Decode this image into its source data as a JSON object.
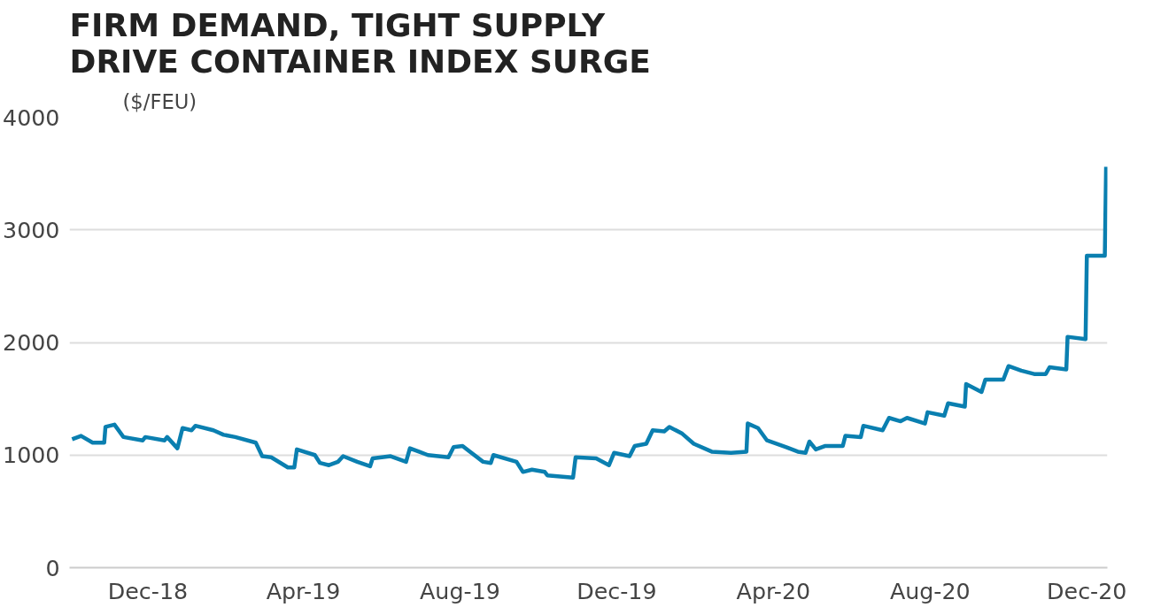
{
  "chart_data": {
    "type": "line",
    "title": "FIRM DEMAND, TIGHT SUPPLY DRIVE CONTAINER INDEX SURGE",
    "ylabel": "($/FEU)",
    "x": [
      "2018-10-03",
      "2018-10-10",
      "2018-10-19",
      "2018-10-28",
      "2018-10-29",
      "2018-11-05",
      "2018-11-12",
      "2018-11-27",
      "2018-11-29",
      "2018-12-14",
      "2018-12-16",
      "2018-12-24",
      "2018-12-28",
      "2019-01-04",
      "2019-01-07",
      "2019-01-21",
      "2019-01-29",
      "2019-02-07",
      "2019-02-23",
      "2019-02-28",
      "2019-03-07",
      "2019-03-20",
      "2019-03-25",
      "2019-03-27",
      "2019-04-10",
      "2019-04-14",
      "2019-04-21",
      "2019-04-28",
      "2019-05-02",
      "2019-05-13",
      "2019-05-23",
      "2019-05-25",
      "2019-06-08",
      "2019-06-20",
      "2019-06-23",
      "2019-06-30",
      "2019-07-07",
      "2019-07-23",
      "2019-07-27",
      "2019-08-03",
      "2019-08-19",
      "2019-08-25",
      "2019-08-27",
      "2019-09-14",
      "2019-09-19",
      "2019-09-26",
      "2019-10-06",
      "2019-10-08",
      "2019-10-28",
      "2019-10-30",
      "2019-11-15",
      "2019-11-25",
      "2019-11-29",
      "2019-12-11",
      "2019-12-15",
      "2019-12-24",
      "2019-12-29",
      "2020-01-07",
      "2020-01-11",
      "2020-01-21",
      "2020-01-30",
      "2020-02-13",
      "2020-02-28",
      "2020-03-11",
      "2020-03-12",
      "2020-03-20",
      "2020-03-27",
      "2020-04-11",
      "2020-04-20",
      "2020-04-26",
      "2020-04-29",
      "2020-05-04",
      "2020-05-11",
      "2020-05-25",
      "2020-05-27",
      "2020-06-08",
      "2020-06-10",
      "2020-06-25",
      "2020-06-30",
      "2020-07-09",
      "2020-07-14",
      "2020-07-28",
      "2020-07-30",
      "2020-08-12",
      "2020-08-15",
      "2020-08-28",
      "2020-08-29",
      "2020-09-10",
      "2020-09-13",
      "2020-09-27",
      "2020-10-01",
      "2020-10-11",
      "2020-10-21",
      "2020-10-30",
      "2020-11-02",
      "2020-11-15",
      "2020-11-16",
      "2020-11-30",
      "2020-12-01",
      "2020-12-15",
      "2020-12-16"
    ],
    "series": [
      {
        "color": "#0a7fb0",
        "values": [
          1140,
          1170,
          1110,
          1110,
          1250,
          1270,
          1160,
          1130,
          1160,
          1130,
          1160,
          1060,
          1240,
          1220,
          1260,
          1220,
          1180,
          1160,
          1110,
          990,
          980,
          890,
          890,
          1050,
          1000,
          930,
          910,
          940,
          990,
          940,
          900,
          970,
          990,
          940,
          1060,
          1030,
          1000,
          980,
          1070,
          1080,
          940,
          930,
          1000,
          940,
          850,
          870,
          850,
          820,
          800,
          980,
          970,
          910,
          1020,
          990,
          1080,
          1100,
          1220,
          1210,
          1250,
          1190,
          1100,
          1030,
          1020,
          1030,
          1280,
          1240,
          1130,
          1070,
          1030,
          1020,
          1120,
          1050,
          1080,
          1080,
          1170,
          1160,
          1260,
          1220,
          1330,
          1300,
          1330,
          1280,
          1380,
          1350,
          1460,
          1430,
          1630,
          1560,
          1670,
          1670,
          1790,
          1750,
          1720,
          1720,
          1780,
          1760,
          2050,
          2030,
          2770,
          2770,
          3560
        ]
      }
    ],
    "xlim": [
      "2018-10-01",
      "2020-12-17"
    ],
    "ylim": [
      0,
      4000
    ],
    "yticks": [
      0,
      1000,
      2000,
      3000,
      4000
    ],
    "xticks": [
      {
        "value": "2018-12-01",
        "label": "Dec-18"
      },
      {
        "value": "2019-04-01",
        "label": "Apr-19"
      },
      {
        "value": "2019-08-01",
        "label": "Aug-19"
      },
      {
        "value": "2019-12-01",
        "label": "Dec-19"
      },
      {
        "value": "2020-04-01",
        "label": "Apr-20"
      },
      {
        "value": "2020-08-01",
        "label": "Aug-20"
      },
      {
        "value": "2020-12-01",
        "label": "Dec-20"
      }
    ],
    "grid": "y",
    "marker": "none",
    "line_style": "solid"
  }
}
